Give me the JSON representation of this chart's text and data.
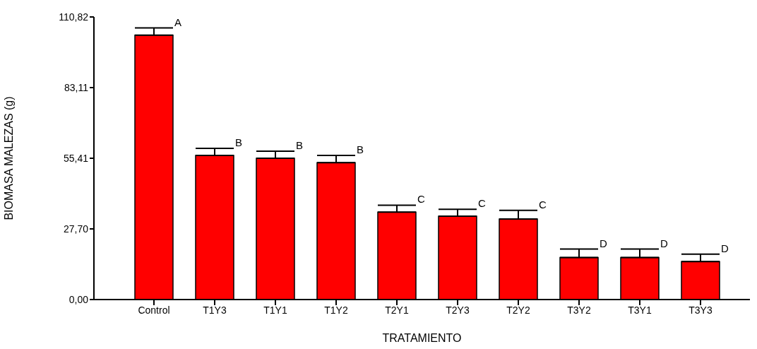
{
  "chart_data": {
    "type": "bar",
    "xlabel": "TRATAMIENTO",
    "ylabel": "BIOMASA MALEZAS (g)",
    "categories": [
      "Control",
      "T1Y3",
      "T1Y1",
      "T1Y2",
      "T2Y1",
      "T2Y3",
      "T2Y2",
      "T3Y2",
      "T3Y1",
      "T3Y3"
    ],
    "values": [
      103.7,
      56.5,
      55.4,
      53.7,
      34.3,
      32.7,
      31.6,
      16.5,
      16.5,
      14.9
    ],
    "errors": [
      [
        103.7,
        106.5
      ],
      [
        56.5,
        59.3
      ],
      [
        55.4,
        58.2
      ],
      [
        53.7,
        56.5
      ],
      [
        34.3,
        37.0
      ],
      [
        32.7,
        35.4
      ],
      [
        31.6,
        35.0
      ],
      [
        16.5,
        19.8
      ],
      [
        16.5,
        19.8
      ],
      [
        14.9,
        17.8
      ]
    ],
    "color": "#ff0000",
    "ylim": [
      0,
      110.82
    ],
    "yticks": [
      {
        "value": 0,
        "label": "0,00"
      },
      {
        "value": 27.7,
        "label": "27,70"
      },
      {
        "value": 55.41,
        "label": "55,41"
      },
      {
        "value": 83.11,
        "label": "83,11"
      },
      {
        "value": 110.82,
        "label": "110,82"
      }
    ],
    "annotations": [
      {
        "text": "A",
        "x": "Control",
        "y": 106.5
      },
      {
        "text": "B",
        "x": "T1Y3",
        "y": 59.3
      },
      {
        "text": "B",
        "x": "T1Y1",
        "y": 58.2
      },
      {
        "text": "B",
        "x": "T1Y2",
        "y": 56.5
      },
      {
        "text": "C",
        "x": "T2Y1",
        "y": 37.0
      },
      {
        "text": "C",
        "x": "T2Y3",
        "y": 35.4
      },
      {
        "text": "C",
        "x": "T2Y2",
        "y": 35.0
      },
      {
        "text": "D",
        "x": "T3Y2",
        "y": 19.8
      },
      {
        "text": "D",
        "x": "T3Y1",
        "y": 19.8
      },
      {
        "text": "D",
        "x": "T3Y3",
        "y": 17.8
      }
    ]
  }
}
